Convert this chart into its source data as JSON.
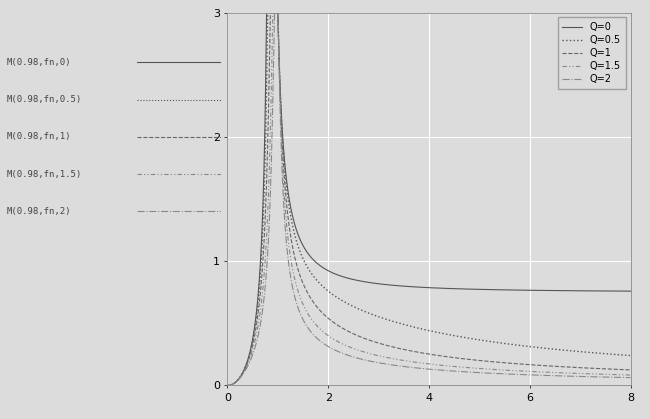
{
  "title": "",
  "xlabel": "",
  "ylabel": "",
  "xlim": [
    0,
    8
  ],
  "ylim": [
    0,
    3
  ],
  "xticks": [
    0,
    2,
    4,
    6,
    8
  ],
  "yticks": [
    0,
    1,
    2,
    3
  ],
  "Q_values": [
    0,
    0.5,
    1,
    1.5,
    2
  ],
  "k": 3,
  "legend_labels": [
    "Q=0",
    "Q=0.5",
    "Q=1",
    "Q=1.5",
    "Q=2"
  ],
  "background_color": "#dcdcdc",
  "grid_color": "#ffffff",
  "legend_fontsize": 7,
  "tick_fontsize": 8,
  "ann_labels": [
    "M(0.98,fn,0)",
    "M(0.98,fn,0.5)",
    "M(0.98,fn,1)",
    "M(0.98,fn,1.5)",
    "M(0.98,fn,2)"
  ]
}
